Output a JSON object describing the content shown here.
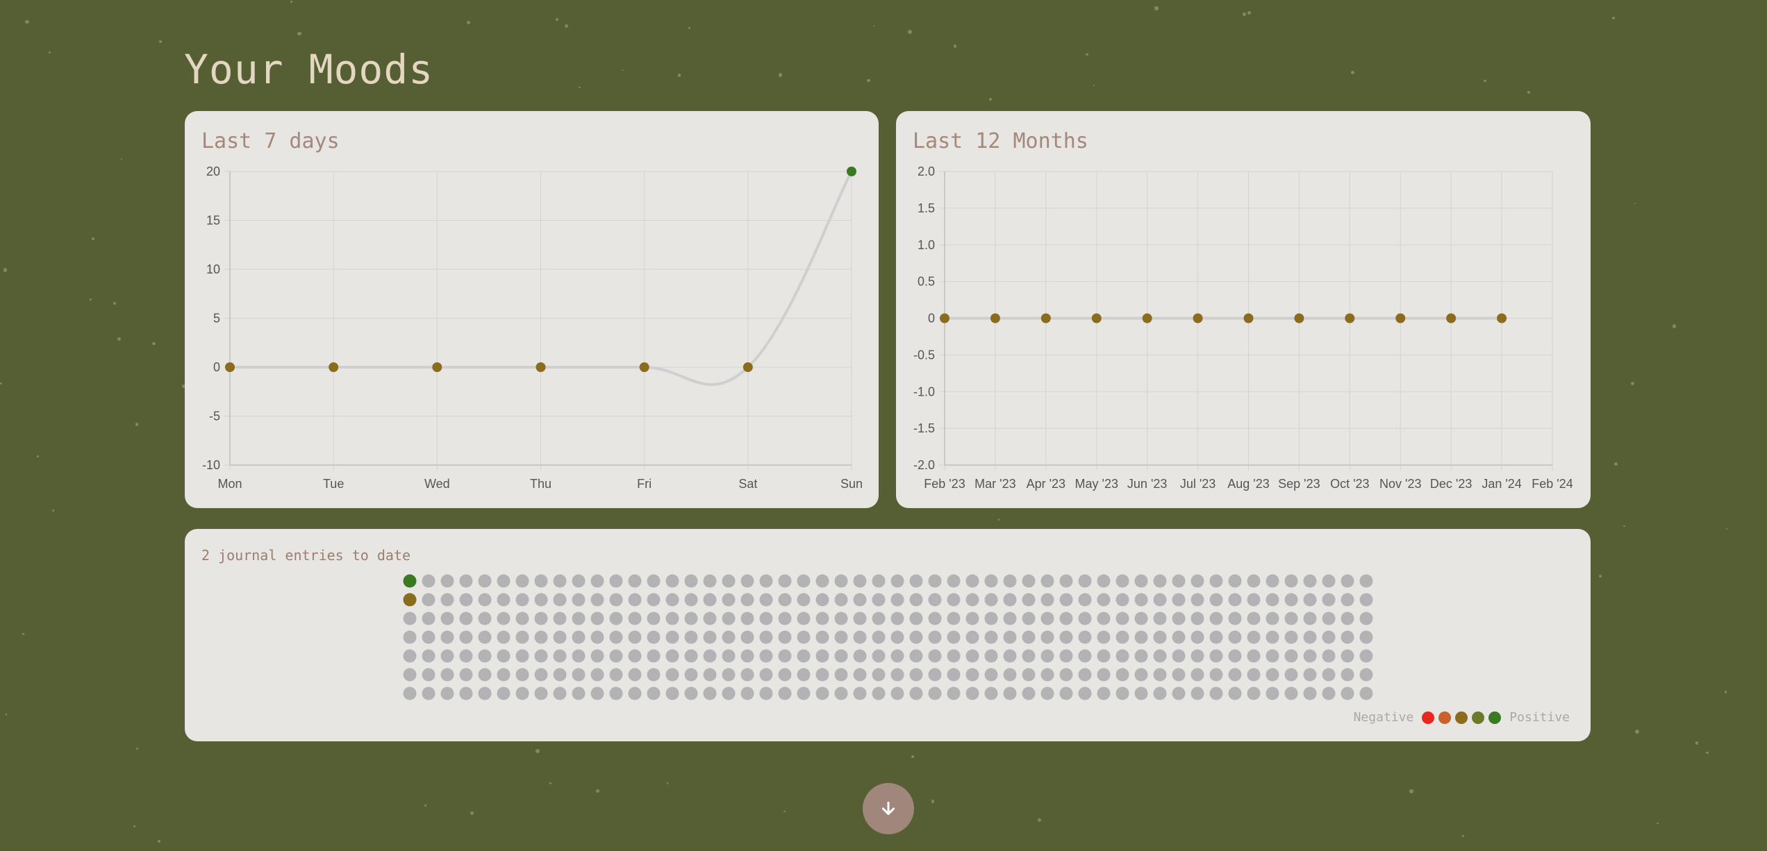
{
  "page": {
    "title": "Your Moods",
    "background": "#565f34"
  },
  "weekly": {
    "title": "Last 7 days",
    "chart_data": {
      "type": "line",
      "categories": [
        "Mon",
        "Tue",
        "Wed",
        "Thu",
        "Fri",
        "Sat",
        "Sun"
      ],
      "series": [
        {
          "values": [
            0,
            0,
            0,
            0,
            0,
            0,
            20
          ],
          "point_colors": [
            "#8b6c1e",
            "#8b6c1e",
            "#8b6c1e",
            "#8b6c1e",
            "#8b6c1e",
            "#8b6c1e",
            "#3a7a22"
          ]
        }
      ],
      "ylim": [
        -10,
        20
      ],
      "yticks": [
        "20",
        "15",
        "10",
        "5",
        "0",
        "-5",
        "-10"
      ],
      "grid": true,
      "smooth": true
    }
  },
  "monthly": {
    "title": "Last 12 Months",
    "chart_data": {
      "type": "line",
      "categories": [
        "Feb '23",
        "Mar '23",
        "Apr '23",
        "May '23",
        "Jun '23",
        "Jul '23",
        "Aug '23",
        "Sep '23",
        "Oct '23",
        "Nov '23",
        "Dec '23",
        "Jan '24",
        "Feb '24"
      ],
      "series": [
        {
          "values": [
            0,
            0,
            0,
            0,
            0,
            0,
            0,
            0,
            0,
            0,
            0,
            0,
            null
          ],
          "point_color": "#8b6c1e"
        }
      ],
      "ylim": [
        -2.0,
        2.0
      ],
      "yticks": [
        "2.0",
        "1.5",
        "1.0",
        "0.5",
        "0",
        "-0.5",
        "-1.0",
        "-1.5",
        "-2.0"
      ],
      "grid": true
    }
  },
  "journal": {
    "count_text": "2 journal entries to date",
    "grid_rows": 7,
    "grid_cols": 52,
    "filled": [
      {
        "row": 0,
        "col": 0,
        "color": "#3a7a22"
      },
      {
        "row": 1,
        "col": 0,
        "color": "#8b6c1e"
      }
    ],
    "empty_color": "#b3b3b5",
    "legend": {
      "negative_label": "Negative",
      "positive_label": "Positive",
      "colors": [
        "#e8281e",
        "#c8612c",
        "#8b6c1e",
        "#6b7a2a",
        "#3a7a22"
      ]
    }
  },
  "scroll_button": {
    "icon": "arrow-down-icon"
  }
}
